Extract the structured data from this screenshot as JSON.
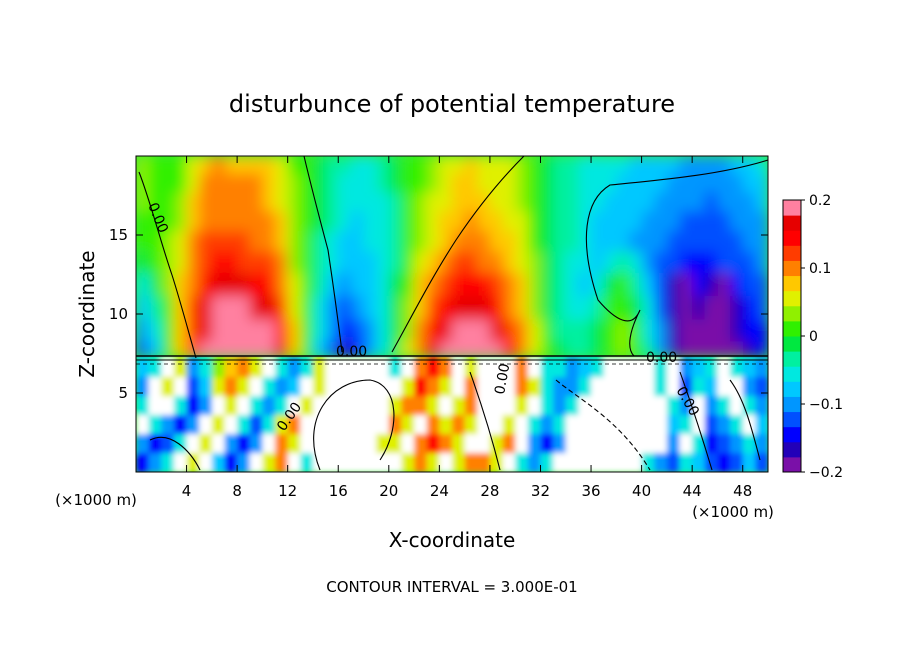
{
  "chart_data": {
    "type": "heatmap",
    "title": "disturbunce of potential temperature",
    "xlabel": "X-coordinate",
    "ylabel": "Z-coordinate",
    "x_unit": "(×1000 m)",
    "y_unit": "(×1000 m)",
    "xlim": [
      0,
      50
    ],
    "ylim": [
      0,
      20
    ],
    "x_ticks": [
      "4",
      "8",
      "12",
      "16",
      "20",
      "24",
      "28",
      "32",
      "36",
      "40",
      "44",
      "48"
    ],
    "x_tick_values": [
      4,
      8,
      12,
      16,
      20,
      24,
      28,
      32,
      36,
      40,
      44,
      48
    ],
    "y_ticks": [
      "5",
      "10",
      "15"
    ],
    "y_tick_values": [
      5,
      10,
      15
    ],
    "footer": "CONTOUR INTERVAL = 3.000E-01",
    "contour_labels": [
      "0.00",
      "0.00",
      "0.00",
      "0.00",
      "0.00",
      "0.00"
    ],
    "colorbar": {
      "min": -0.2,
      "max": 0.2,
      "tick_labels": [
        "0.2",
        "0.1",
        "0",
        "−0.1",
        "−0.2"
      ],
      "tick_values": [
        0.2,
        0.1,
        0,
        -0.1,
        -0.2
      ],
      "colors": [
        "#7a10a8",
        "#2200b8",
        "#0000ff",
        "#0050ff",
        "#0096ff",
        "#00c8ff",
        "#00e8e0",
        "#00f0a0",
        "#00e840",
        "#30f000",
        "#90f000",
        "#e0f000",
        "#ffc800",
        "#ff8000",
        "#ff3c00",
        "#ff0000",
        "#e60000",
        "#ff80a0"
      ]
    },
    "lower_layer_top_z": 7.3,
    "upper_field": [
      [
        0.04,
        0.02,
        0.02,
        0.01,
        0.05,
        0.08,
        0.09,
        0.08,
        0.08,
        0.08,
        0.07,
        0.05,
        0.02,
        0.0,
        -0.02,
        -0.03,
        -0.04,
        -0.05,
        -0.05,
        -0.04,
        -0.02,
        0.0,
        0.02,
        0.04,
        0.05,
        0.06,
        0.07,
        0.06,
        0.05,
        0.05,
        0.03,
        0.02,
        -0.01,
        -0.03,
        -0.04,
        -0.05,
        -0.05,
        -0.06,
        -0.06,
        -0.07,
        -0.07,
        -0.08,
        -0.08,
        -0.09,
        -0.09,
        -0.09,
        -0.09,
        -0.08,
        -0.07,
        -0.06
      ],
      [
        0.04,
        0.02,
        0.01,
        0.02,
        0.06,
        0.09,
        0.09,
        0.09,
        0.09,
        0.09,
        0.08,
        0.06,
        0.03,
        0.01,
        -0.02,
        -0.03,
        -0.05,
        -0.06,
        -0.05,
        -0.04,
        -0.02,
        0.0,
        0.02,
        0.04,
        0.06,
        0.07,
        0.07,
        0.06,
        0.06,
        0.05,
        0.04,
        0.02,
        -0.01,
        -0.03,
        -0.04,
        -0.05,
        -0.06,
        -0.06,
        -0.07,
        -0.07,
        -0.08,
        -0.08,
        -0.09,
        -0.09,
        -0.1,
        -0.1,
        -0.1,
        -0.09,
        -0.08,
        -0.07
      ],
      [
        0.03,
        0.02,
        0.01,
        0.03,
        0.07,
        0.1,
        0.1,
        0.1,
        0.1,
        0.09,
        0.08,
        0.06,
        0.03,
        0.0,
        -0.02,
        -0.03,
        -0.05,
        -0.06,
        -0.06,
        -0.05,
        -0.03,
        0.0,
        0.03,
        0.05,
        0.06,
        0.07,
        0.08,
        0.07,
        0.06,
        0.05,
        0.04,
        0.02,
        -0.01,
        -0.03,
        -0.04,
        -0.05,
        -0.06,
        -0.07,
        -0.07,
        -0.08,
        -0.08,
        -0.09,
        -0.09,
        -0.1,
        -0.11,
        -0.12,
        -0.11,
        -0.1,
        -0.09,
        -0.08
      ],
      [
        0.02,
        0.02,
        0.02,
        0.04,
        0.08,
        0.11,
        0.11,
        0.11,
        0.11,
        0.1,
        0.09,
        0.07,
        0.03,
        0.0,
        -0.02,
        -0.04,
        -0.06,
        -0.07,
        -0.06,
        -0.05,
        -0.03,
        0.0,
        0.03,
        0.05,
        0.07,
        0.08,
        0.09,
        0.08,
        0.07,
        0.06,
        0.05,
        0.02,
        -0.01,
        -0.03,
        -0.04,
        -0.05,
        -0.07,
        -0.07,
        -0.08,
        -0.08,
        -0.09,
        -0.1,
        -0.11,
        -0.12,
        -0.12,
        -0.12,
        -0.12,
        -0.11,
        -0.1,
        -0.09
      ],
      [
        0.0,
        0.01,
        0.03,
        0.05,
        0.09,
        0.12,
        0.12,
        0.12,
        0.12,
        0.11,
        0.1,
        0.08,
        0.04,
        0.0,
        -0.03,
        -0.05,
        -0.07,
        -0.07,
        -0.06,
        -0.05,
        -0.03,
        0.0,
        0.04,
        0.06,
        0.08,
        0.1,
        0.1,
        0.09,
        0.08,
        0.07,
        0.05,
        0.02,
        -0.01,
        -0.03,
        -0.04,
        -0.06,
        -0.07,
        -0.08,
        -0.08,
        -0.09,
        -0.1,
        -0.11,
        -0.12,
        -0.13,
        -0.13,
        -0.13,
        -0.12,
        -0.12,
        -0.11,
        -0.1
      ],
      [
        -0.02,
        0.0,
        0.03,
        0.06,
        0.1,
        0.13,
        0.14,
        0.14,
        0.13,
        0.13,
        0.12,
        0.09,
        0.04,
        0.0,
        -0.04,
        -0.06,
        -0.08,
        -0.08,
        -0.07,
        -0.05,
        -0.03,
        0.01,
        0.05,
        0.08,
        0.1,
        0.12,
        0.12,
        0.11,
        0.09,
        0.08,
        0.06,
        0.03,
        -0.01,
        -0.03,
        -0.05,
        -0.06,
        -0.08,
        -0.06,
        -0.04,
        -0.06,
        -0.1,
        -0.12,
        -0.13,
        -0.14,
        -0.14,
        -0.14,
        -0.13,
        -0.13,
        -0.12,
        -0.11
      ],
      [
        -0.05,
        -0.02,
        0.03,
        0.07,
        0.11,
        0.15,
        0.16,
        0.16,
        0.16,
        0.15,
        0.14,
        0.11,
        0.05,
        0.0,
        -0.04,
        -0.07,
        -0.09,
        -0.08,
        -0.07,
        -0.05,
        -0.02,
        0.02,
        0.07,
        0.1,
        0.13,
        0.15,
        0.15,
        0.14,
        0.12,
        0.1,
        0.07,
        0.03,
        -0.01,
        -0.03,
        -0.05,
        -0.07,
        -0.05,
        -0.02,
        0.0,
        -0.03,
        -0.08,
        -0.13,
        -0.16,
        -0.19,
        -0.15,
        -0.17,
        -0.19,
        -0.14,
        -0.13,
        -0.12
      ],
      [
        -0.08,
        -0.04,
        0.02,
        0.07,
        0.12,
        0.16,
        0.18,
        0.18,
        0.18,
        0.17,
        0.16,
        0.13,
        0.06,
        0.0,
        -0.05,
        -0.09,
        -0.12,
        -0.1,
        -0.08,
        -0.05,
        -0.02,
        0.03,
        0.08,
        0.12,
        0.15,
        0.17,
        0.17,
        0.16,
        0.14,
        0.11,
        0.08,
        0.04,
        -0.01,
        -0.03,
        -0.05,
        -0.06,
        -0.03,
        0.0,
        0.02,
        -0.01,
        -0.06,
        -0.12,
        -0.17,
        -0.2,
        -0.17,
        -0.18,
        -0.2,
        -0.16,
        -0.14,
        -0.13
      ],
      [
        -0.11,
        -0.06,
        0.01,
        0.07,
        0.12,
        0.17,
        0.2,
        0.2,
        0.2,
        0.19,
        0.18,
        0.15,
        0.07,
        0.0,
        -0.06,
        -0.11,
        -0.15,
        -0.12,
        -0.09,
        -0.06,
        -0.02,
        0.04,
        0.1,
        0.14,
        0.17,
        0.19,
        0.19,
        0.18,
        0.16,
        0.13,
        0.09,
        0.05,
        0.0,
        -0.03,
        -0.04,
        -0.04,
        -0.02,
        0.01,
        0.03,
        0.0,
        -0.05,
        -0.11,
        -0.17,
        -0.2,
        -0.18,
        -0.19,
        -0.2,
        -0.17,
        -0.15,
        -0.14
      ],
      [
        -0.13,
        -0.08,
        0.0,
        0.07,
        0.13,
        0.18,
        0.2,
        0.2,
        0.2,
        0.2,
        0.2,
        0.17,
        0.08,
        0.0,
        -0.07,
        -0.13,
        -0.17,
        -0.14,
        -0.1,
        -0.06,
        -0.01,
        0.05,
        0.11,
        0.16,
        0.19,
        0.2,
        0.2,
        0.2,
        0.18,
        0.15,
        0.11,
        0.06,
        0.01,
        -0.02,
        -0.03,
        -0.03,
        -0.01,
        0.01,
        0.03,
        0.01,
        -0.04,
        -0.1,
        -0.16,
        -0.2,
        -0.19,
        -0.2,
        -0.2,
        -0.18,
        -0.16,
        -0.15
      ]
    ],
    "upper_field_rows_z": [
      19.5,
      18.3,
      17.1,
      15.9,
      14.6,
      13.3,
      11.9,
      10.4,
      8.9,
      7.6
    ],
    "lower_field": [
      [
        -0.08,
        -0.05,
        0.0,
        0.05,
        -0.1,
        -0.05,
        0.03,
        0.08,
        0.1,
        0.05,
        0.0,
        -0.05,
        -0.1,
        -0.05,
        0.05,
        0.0,
        0.0,
        0.0,
        0.0,
        0.0,
        -0.05,
        0.0,
        0.1,
        0.15,
        0.1,
        0.0,
        0.05,
        0.0,
        0.0,
        0.0,
        0.1,
        0.0,
        -0.05,
        -0.05,
        -0.1,
        -0.08,
        -0.05,
        0.0,
        0.0,
        0.0,
        0.0,
        -0.05,
        0.0,
        -0.1,
        -0.08,
        -0.05,
        0.0,
        -0.05,
        -0.08,
        -0.1
      ],
      [
        -0.1,
        0.0,
        0.05,
        0.0,
        -0.12,
        -0.08,
        0.05,
        0.1,
        0.05,
        0.0,
        -0.05,
        -0.1,
        -0.08,
        0.0,
        0.05,
        0.0,
        0.0,
        0.0,
        0.0,
        0.0,
        0.0,
        0.05,
        0.15,
        0.1,
        0.05,
        0.0,
        0.1,
        0.0,
        0.0,
        0.0,
        0.1,
        0.05,
        -0.05,
        -0.1,
        -0.1,
        -0.05,
        0.0,
        0.0,
        0.0,
        0.0,
        0.0,
        -0.05,
        0.0,
        -0.12,
        -0.05,
        -0.08,
        0.0,
        0.0,
        -0.1,
        -0.12
      ],
      [
        -0.05,
        0.0,
        0.0,
        -0.05,
        -0.15,
        -0.1,
        0.0,
        0.05,
        0.0,
        -0.05,
        -0.1,
        -0.05,
        0.0,
        0.05,
        0.0,
        0.0,
        0.0,
        0.0,
        0.0,
        0.0,
        0.05,
        0.1,
        0.1,
        0.05,
        0.0,
        0.05,
        0.1,
        0.0,
        0.0,
        0.0,
        0.05,
        0.0,
        -0.05,
        -0.1,
        -0.05,
        0.0,
        0.0,
        0.0,
        0.0,
        0.0,
        0.0,
        0.0,
        -0.05,
        -0.1,
        0.0,
        -0.1,
        -0.05,
        0.0,
        -0.05,
        -0.1
      ],
      [
        0.0,
        -0.05,
        -0.1,
        -0.15,
        -0.1,
        0.0,
        0.05,
        0.0,
        -0.05,
        -0.12,
        -0.05,
        0.05,
        0.1,
        0.0,
        0.0,
        0.0,
        0.0,
        0.0,
        0.0,
        0.0,
        0.1,
        0.05,
        0.0,
        0.1,
        0.05,
        0.1,
        0.05,
        0.0,
        0.0,
        0.05,
        0.0,
        -0.05,
        -0.1,
        -0.05,
        0.0,
        0.0,
        0.0,
        0.0,
        0.0,
        0.0,
        0.0,
        0.0,
        -0.08,
        -0.05,
        0.0,
        -0.12,
        -0.1,
        -0.05,
        0.0,
        -0.08
      ],
      [
        -0.1,
        -0.15,
        -0.12,
        -0.05,
        0.0,
        0.05,
        0.0,
        -0.1,
        -0.15,
        -0.1,
        0.0,
        0.1,
        0.05,
        0.0,
        0.0,
        0.0,
        0.0,
        0.0,
        0.0,
        0.05,
        0.05,
        0.0,
        0.1,
        0.15,
        0.1,
        0.05,
        0.0,
        0.0,
        0.05,
        0.1,
        0.0,
        -0.1,
        -0.15,
        -0.1,
        0.0,
        0.0,
        0.0,
        0.0,
        0.0,
        0.0,
        0.0,
        0.0,
        -0.1,
        0.0,
        -0.05,
        -0.15,
        -0.12,
        -0.1,
        -0.05,
        -0.1
      ],
      [
        -0.15,
        -0.1,
        -0.05,
        0.0,
        0.05,
        0.0,
        -0.08,
        -0.15,
        -0.1,
        0.0,
        0.05,
        0.1,
        0.0,
        -0.05,
        0.0,
        0.0,
        0.0,
        0.0,
        0.0,
        0.0,
        0.0,
        0.05,
        0.1,
        0.05,
        0.0,
        0.05,
        0.1,
        0.1,
        0.05,
        0.0,
        -0.05,
        -0.1,
        -0.05,
        0.0,
        0.0,
        0.0,
        0.0,
        0.0,
        0.0,
        0.0,
        -0.05,
        -0.1,
        -0.12,
        -0.05,
        -0.08,
        -0.12,
        -0.15,
        -0.12,
        -0.08,
        -0.12
      ]
    ],
    "lower_field_rows_z": [
      6.6,
      5.4,
      4.2,
      3.0,
      1.8,
      0.6
    ]
  }
}
